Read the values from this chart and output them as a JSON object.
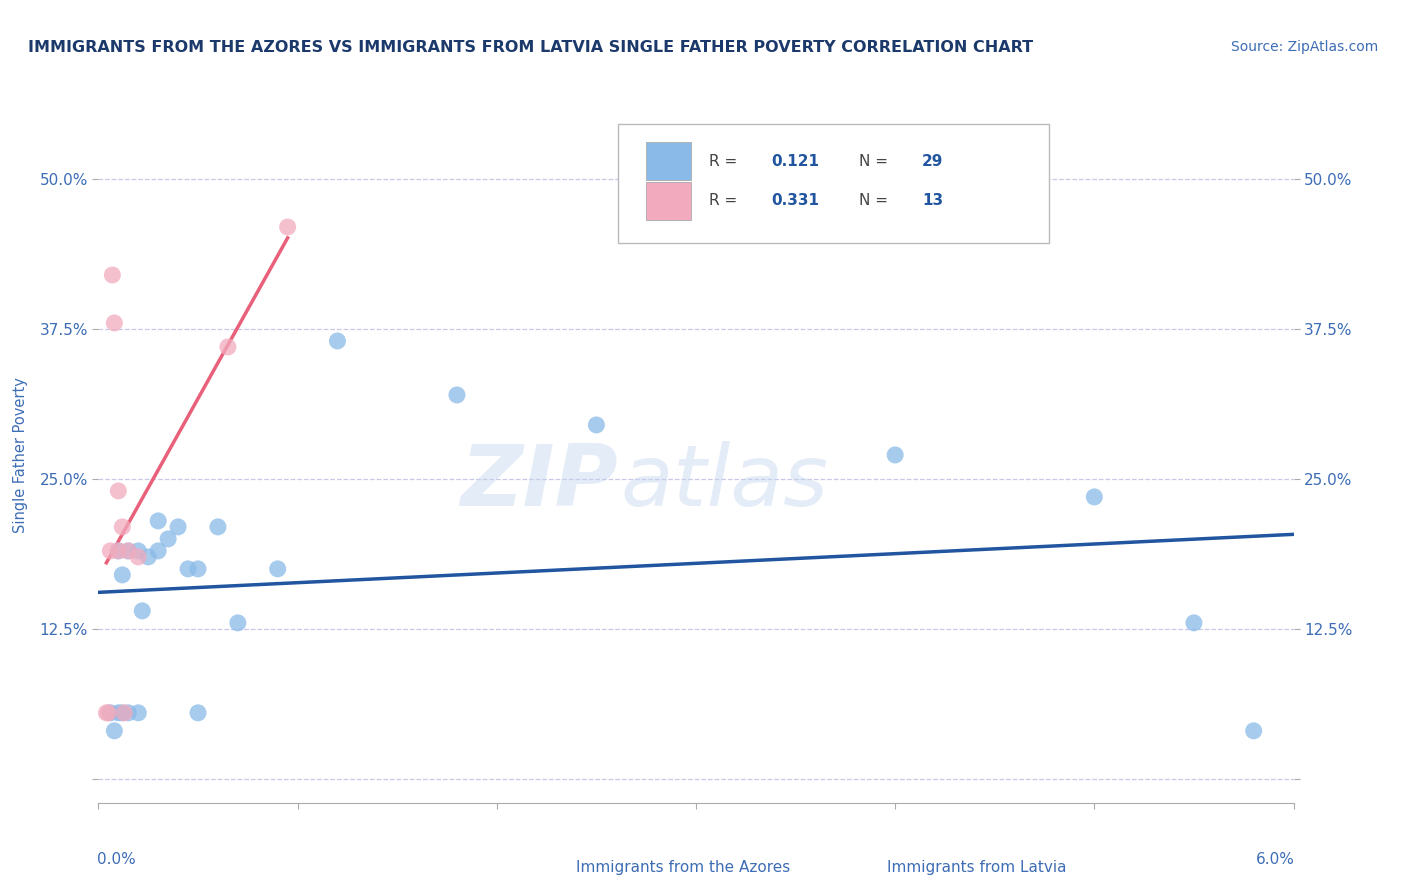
{
  "title": "IMMIGRANTS FROM THE AZORES VS IMMIGRANTS FROM LATVIA SINGLE FATHER POVERTY CORRELATION CHART",
  "source_text": "Source: ZipAtlas.com",
  "ylabel": "Single Father Poverty",
  "xlim": [
    0.0,
    0.06
  ],
  "ylim": [
    -0.02,
    0.56
  ],
  "ytick_positions": [
    0.0,
    0.125,
    0.25,
    0.375,
    0.5
  ],
  "ytick_labels": [
    "",
    "12.5%",
    "25.0%",
    "37.5%",
    "50.0%"
  ],
  "grid_color": "#c8c8e8",
  "background_color": "#ffffff",
  "watermark_zip": "ZIP",
  "watermark_atlas": "atlas",
  "color_azores": "#89BAE8",
  "color_latvia": "#F2ABBE",
  "trendline_azores_color": "#2155A0",
  "trendline_latvia_color": "#E8607A",
  "title_color": "#1B3A6B",
  "tick_label_color": "#3D6DB5",
  "azores_x": [
    0.0006,
    0.0008,
    0.001,
    0.001,
    0.0012,
    0.0012,
    0.0015,
    0.0015,
    0.002,
    0.002,
    0.0022,
    0.0025,
    0.003,
    0.003,
    0.0035,
    0.004,
    0.0045,
    0.005,
    0.005,
    0.006,
    0.007,
    0.009,
    0.012,
    0.018,
    0.025,
    0.04,
    0.05,
    0.055,
    0.058
  ],
  "azores_y": [
    0.055,
    0.04,
    0.055,
    0.19,
    0.055,
    0.17,
    0.055,
    0.19,
    0.055,
    0.19,
    0.14,
    0.185,
    0.19,
    0.215,
    0.2,
    0.21,
    0.175,
    0.055,
    0.175,
    0.21,
    0.13,
    0.175,
    0.365,
    0.32,
    0.295,
    0.27,
    0.235,
    0.13,
    0.04
  ],
  "latvia_x": [
    0.0004,
    0.0005,
    0.0006,
    0.0007,
    0.0008,
    0.001,
    0.001,
    0.0012,
    0.0013,
    0.0015,
    0.002,
    0.0065,
    0.0095
  ],
  "latvia_y": [
    0.055,
    0.055,
    0.19,
    0.42,
    0.38,
    0.19,
    0.24,
    0.21,
    0.055,
    0.19,
    0.185,
    0.36,
    0.46
  ],
  "figsize": [
    14.06,
    8.92
  ],
  "dpi": 100
}
